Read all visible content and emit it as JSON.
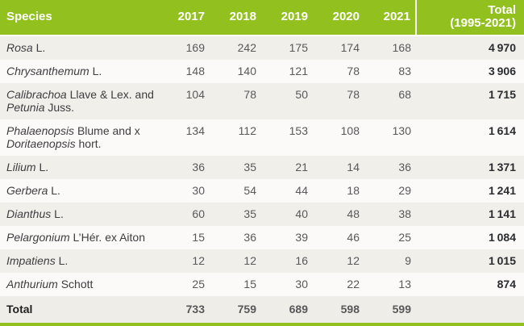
{
  "colors": {
    "header_green": "#92C11F",
    "row_shaded": "#F0EFEA",
    "row_plain": "#FBFAF9",
    "footer_bg": "#EFEDE7",
    "header_text": "#FFFFFF",
    "species_text": "#3E3D40",
    "number_text": "#58585A",
    "total_column_text": "#2B2C30"
  },
  "table": {
    "header": {
      "species": "Species",
      "years": [
        "2017",
        "2018",
        "2019",
        "2020",
        "2021"
      ],
      "total_line1": "Total",
      "total_line2": "(1995-2021)"
    },
    "rows": [
      {
        "species": [
          {
            "t": "Rosa",
            "i": true
          },
          {
            "t": " L.",
            "i": false
          }
        ],
        "values": [
          "169",
          "242",
          "175",
          "174",
          "168"
        ],
        "total": "4 970"
      },
      {
        "species": [
          {
            "t": "Chrysanthemum",
            "i": true
          },
          {
            "t": " L.",
            "i": false
          }
        ],
        "values": [
          "148",
          "140",
          "121",
          "78",
          "83"
        ],
        "total": "3 906"
      },
      {
        "species": [
          {
            "t": "Calibrachoa",
            "i": true
          },
          {
            "t": " Llave & Lex. and",
            "i": false
          },
          {
            "br": true
          },
          {
            "t": "Petunia",
            "i": true
          },
          {
            "t": " Juss.",
            "i": false
          }
        ],
        "values": [
          "104",
          "78",
          "50",
          "78",
          "68"
        ],
        "total": "1 715"
      },
      {
        "species": [
          {
            "t": "Phalaenopsis",
            "i": true
          },
          {
            "t": " Blume and x",
            "i": false
          },
          {
            "br": true
          },
          {
            "t": "Doritaenopsis",
            "i": true
          },
          {
            "t": " hort.",
            "i": false
          }
        ],
        "values": [
          "134",
          "112",
          "153",
          "108",
          "130"
        ],
        "total": "1 614"
      },
      {
        "species": [
          {
            "t": "Lilium",
            "i": true
          },
          {
            "t": " L.",
            "i": false
          }
        ],
        "values": [
          "36",
          "35",
          "21",
          "14",
          "36"
        ],
        "total": "1 371"
      },
      {
        "species": [
          {
            "t": "Gerbera",
            "i": true
          },
          {
            "t": " L.",
            "i": false
          }
        ],
        "values": [
          "30",
          "54",
          "44",
          "18",
          "29"
        ],
        "total": "1 241"
      },
      {
        "species": [
          {
            "t": "Dianthus",
            "i": true
          },
          {
            "t": " L.",
            "i": false
          }
        ],
        "values": [
          "60",
          "35",
          "40",
          "48",
          "38"
        ],
        "total": "1 141"
      },
      {
        "species": [
          {
            "t": "Pelargonium",
            "i": true
          },
          {
            "t": " L’Hér. ex Aiton",
            "i": false
          }
        ],
        "values": [
          "15",
          "36",
          "39",
          "46",
          "25"
        ],
        "total": "1 084"
      },
      {
        "species": [
          {
            "t": "Impatiens",
            "i": true
          },
          {
            "t": " L.",
            "i": false
          }
        ],
        "values": [
          "12",
          "12",
          "16",
          "12",
          "9"
        ],
        "total": "1 015"
      },
      {
        "species": [
          {
            "t": "Anthurium",
            "i": true
          },
          {
            "t": " Schott",
            "i": false
          }
        ],
        "values": [
          "25",
          "15",
          "30",
          "22",
          "13"
        ],
        "total": "874"
      }
    ],
    "footer": {
      "label": "Total",
      "values": [
        "733",
        "759",
        "689",
        "598",
        "599"
      ],
      "total": ""
    }
  }
}
